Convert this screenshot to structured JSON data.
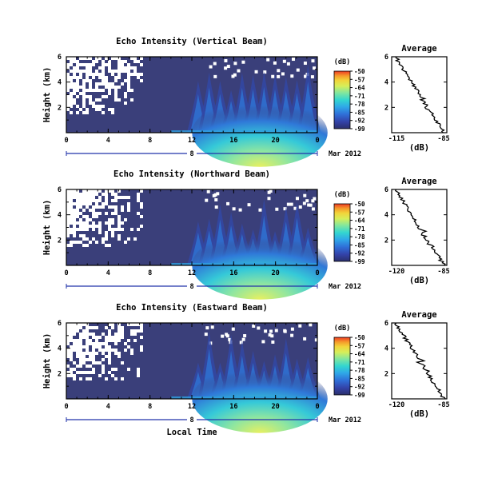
{
  "chart_data": [
    {
      "type": "heatmap",
      "title": "Echo Intensity (Vertical Beam)",
      "ylabel": "Height (km)",
      "ylim": [
        0,
        6
      ],
      "y_ticks": [
        "6",
        "4",
        "2"
      ],
      "xlim": [
        0,
        24
      ],
      "x_ticks": [
        "0",
        "4",
        "8",
        "12",
        "16",
        "20",
        "0"
      ],
      "date_day": "8",
      "date_month_year": "Mar 2012",
      "colorbar": {
        "unit": "(dB)",
        "ticks": [
          "-50",
          "-57",
          "-64",
          "-71",
          "-78",
          "-85",
          "-92",
          "-99"
        ]
      },
      "average": {
        "title": "Average",
        "xlabel": "(dB)",
        "x_ticks": [
          "-115",
          "-85"
        ],
        "xlim": [
          -115,
          -85
        ],
        "y_ticks": [
          "6",
          "4",
          "2"
        ],
        "ylim": [
          0,
          6
        ]
      }
    },
    {
      "type": "heatmap",
      "title": "Echo Intensity (Northward Beam)",
      "ylabel": "Height (km)",
      "ylim": [
        0,
        6
      ],
      "y_ticks": [
        "6",
        "4",
        "2"
      ],
      "xlim": [
        0,
        24
      ],
      "x_ticks": [
        "0",
        "4",
        "8",
        "12",
        "16",
        "20",
        "0"
      ],
      "date_day": "8",
      "date_month_year": "Mar 2012",
      "colorbar": {
        "unit": "(dB)",
        "ticks": [
          "-50",
          "-57",
          "-64",
          "-71",
          "-78",
          "-85",
          "-92",
          "-99"
        ]
      },
      "average": {
        "title": "Average",
        "xlabel": "(dB)",
        "x_ticks": [
          "-120",
          "-85"
        ],
        "xlim": [
          -120,
          -85
        ],
        "y_ticks": [
          "6",
          "4",
          "2"
        ],
        "ylim": [
          0,
          6
        ]
      }
    },
    {
      "type": "heatmap",
      "title": "Echo Intensity (Eastward Beam)",
      "ylabel": "Height (km)",
      "ylim": [
        0,
        6
      ],
      "y_ticks": [
        "6",
        "4",
        "2"
      ],
      "xlim": [
        0,
        24
      ],
      "x_ticks": [
        "0",
        "4",
        "8",
        "12",
        "16",
        "20",
        "0"
      ],
      "date_day": "8",
      "date_month_year": "Mar 2012",
      "xlabel": "Local Time",
      "colorbar": {
        "unit": "(dB)",
        "ticks": [
          "-50",
          "-57",
          "-64",
          "-71",
          "-78",
          "-85",
          "-92",
          "-99"
        ]
      },
      "average": {
        "title": "Average",
        "xlabel": "(dB)",
        "x_ticks": [
          "-120",
          "-85"
        ],
        "xlim": [
          -120,
          -85
        ],
        "y_ticks": [
          "6",
          "4",
          "2"
        ],
        "ylim": [
          0,
          6
        ]
      }
    }
  ],
  "colors": {
    "background_fill": "#3a3f7a",
    "colormap": [
      "#2b2f6b",
      "#3342a8",
      "#2f6fd8",
      "#2fa8e8",
      "#33d6d0",
      "#7fe6a0",
      "#d6ef5a",
      "#f2d43a",
      "#f59a2a",
      "#ee3b24"
    ]
  }
}
